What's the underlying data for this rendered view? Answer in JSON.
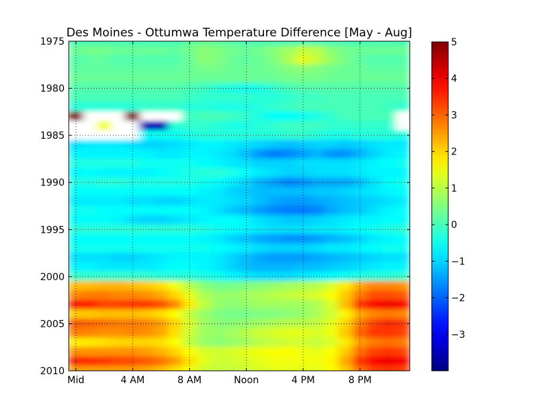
{
  "chart_data": {
    "type": "heatmap",
    "title": "Des Moines - Ottumwa Temperature Difference [May - Aug]",
    "x_tick_labels": [
      "Mid",
      "4 AM",
      "8 AM",
      "Noon",
      "4 PM",
      "8 PM"
    ],
    "x_tick_hours": [
      0,
      4,
      8,
      12,
      16,
      20
    ],
    "x_range_hours": [
      -0.5,
      23.5
    ],
    "y_tick_labels": [
      "1975",
      "1980",
      "1985",
      "1990",
      "1995",
      "2000",
      "2005",
      "2010"
    ],
    "y_range_years": [
      1975,
      2010
    ],
    "grid": true,
    "colorbar": {
      "min": -4,
      "max": 5,
      "tick_values": [
        5,
        4,
        3,
        2,
        1,
        0,
        -1,
        -2,
        -3
      ],
      "tick_labels": [
        "5",
        "4",
        "3",
        "2",
        "1",
        "0",
        "−1",
        "−2",
        "−3"
      ],
      "colormap": "jet"
    },
    "hours": [
      0,
      1,
      2,
      3,
      4,
      5,
      6,
      7,
      8,
      9,
      10,
      11,
      12,
      13,
      14,
      15,
      16,
      17,
      18,
      19,
      20,
      21,
      22,
      23
    ],
    "years": [
      1975,
      1976,
      1977,
      1978,
      1979,
      1980,
      1981,
      1982,
      1983,
      1984,
      1985,
      1986,
      1987,
      1988,
      1989,
      1990,
      1991,
      1992,
      1993,
      1994,
      1995,
      1996,
      1997,
      1998,
      1999,
      2000,
      2001,
      2002,
      2003,
      2004,
      2005,
      2006,
      2007,
      2008,
      2009,
      2010
    ],
    "values": [
      [
        0.0,
        0.0,
        0.0,
        0.0,
        0.0,
        0.0,
        0.0,
        0.0,
        0.2,
        0.3,
        0.2,
        0.1,
        0.0,
        0.0,
        0.0,
        0.0,
        0.0,
        0.0,
        0.0,
        0.0,
        0.0,
        0.0,
        0.0,
        0.0
      ],
      [
        0.3,
        0.4,
        0.4,
        0.3,
        0.3,
        0.3,
        0.3,
        0.2,
        0.4,
        0.6,
        0.5,
        0.4,
        0.3,
        0.4,
        0.6,
        0.8,
        1.1,
        1.0,
        0.6,
        0.4,
        0.3,
        0.3,
        0.3,
        0.3
      ],
      [
        0.1,
        0.2,
        0.2,
        0.1,
        0.1,
        0.1,
        0.1,
        0.1,
        0.3,
        0.6,
        0.5,
        0.3,
        0.2,
        0.3,
        0.5,
        0.9,
        1.4,
        1.1,
        0.7,
        0.4,
        0.2,
        0.1,
        0.1,
        0.1
      ],
      [
        0.2,
        0.2,
        0.2,
        0.2,
        0.2,
        0.2,
        0.2,
        0.2,
        0.3,
        0.4,
        0.4,
        0.3,
        0.3,
        0.3,
        0.4,
        0.5,
        0.6,
        0.5,
        0.4,
        0.3,
        0.3,
        0.2,
        0.2,
        0.2
      ],
      [
        0.3,
        0.3,
        0.3,
        0.3,
        0.3,
        0.3,
        0.3,
        0.3,
        0.3,
        0.3,
        0.3,
        0.3,
        0.3,
        0.3,
        0.3,
        0.4,
        0.4,
        0.4,
        0.3,
        0.3,
        0.3,
        0.3,
        0.3,
        0.3
      ],
      [
        0.1,
        0.1,
        0.1,
        0.1,
        0.1,
        0.1,
        0.1,
        0.1,
        0.0,
        -0.1,
        -0.3,
        -0.4,
        -0.5,
        -0.4,
        -0.2,
        0.0,
        0.1,
        0.1,
        0.1,
        0.1,
        0.1,
        0.1,
        0.1,
        0.1
      ],
      [
        0.0,
        0.0,
        0.0,
        0.0,
        0.0,
        0.0,
        0.0,
        0.0,
        -0.1,
        -0.2,
        -0.2,
        -0.2,
        -0.2,
        -0.3,
        -0.3,
        -0.2,
        -0.1,
        -0.1,
        0.0,
        0.0,
        0.0,
        0.0,
        0.0,
        0.0
      ],
      [
        -0.3,
        -0.3,
        -0.3,
        -0.3,
        -0.3,
        -0.2,
        -0.2,
        -0.2,
        -0.3,
        -0.3,
        -0.4,
        -0.4,
        -0.4,
        -0.3,
        -0.2,
        -0.1,
        0.0,
        0.0,
        0.0,
        0.0,
        0.0,
        0.0,
        -0.1,
        -0.2
      ],
      [
        5.0,
        null,
        null,
        null,
        5.0,
        null,
        null,
        null,
        -0.1,
        0.0,
        0.0,
        -0.1,
        -0.2,
        -0.4,
        -0.6,
        -0.6,
        -0.5,
        -0.4,
        -0.2,
        0.0,
        0.0,
        0.0,
        0.0,
        null
      ],
      [
        null,
        null,
        1.5,
        null,
        null,
        -3.5,
        -3.5,
        -0.3,
        -0.2,
        -0.2,
        -0.3,
        -0.4,
        -0.4,
        -0.3,
        -0.2,
        -0.1,
        -0.1,
        -0.1,
        -0.2,
        -0.2,
        -0.2,
        -0.2,
        -0.2,
        null
      ],
      [
        null,
        null,
        null,
        null,
        null,
        -0.6,
        -0.5,
        -0.5,
        -0.4,
        -0.3,
        -0.3,
        -0.3,
        -0.3,
        -0.3,
        -0.3,
        -0.2,
        -0.2,
        -0.3,
        -0.4,
        -0.4,
        -0.3,
        -0.3,
        -0.3,
        -0.4
      ],
      [
        -0.9,
        -0.8,
        -0.8,
        -0.8,
        -0.9,
        -1.0,
        -1.0,
        -0.9,
        -0.8,
        -0.7,
        -0.7,
        -0.8,
        -0.9,
        -1.0,
        -1.1,
        -1.2,
        -1.1,
        -1.0,
        -1.0,
        -1.1,
        -1.0,
        -0.9,
        -0.8,
        -0.8
      ],
      [
        -0.7,
        -0.7,
        -0.7,
        -0.7,
        -0.7,
        -0.7,
        -0.8,
        -0.8,
        -0.7,
        -0.7,
        -0.8,
        -0.9,
        -1.2,
        -1.6,
        -1.8,
        -1.7,
        -1.5,
        -1.3,
        -1.6,
        -1.6,
        -1.3,
        -1.0,
        -0.8,
        -0.7
      ],
      [
        -0.4,
        -0.4,
        -0.4,
        -0.4,
        -0.4,
        -0.5,
        -0.5,
        -0.5,
        -0.5,
        -0.6,
        -0.7,
        -0.8,
        -0.9,
        -1.0,
        -1.0,
        -1.0,
        -0.9,
        -0.9,
        -0.9,
        -0.9,
        -0.8,
        -0.7,
        -0.6,
        -0.5
      ],
      [
        -0.7,
        -0.6,
        -0.7,
        -0.7,
        -0.7,
        -0.7,
        -0.6,
        -0.5,
        -0.4,
        -0.3,
        -0.3,
        -0.4,
        -0.6,
        -0.8,
        -0.9,
        -1.0,
        -1.0,
        -0.9,
        -0.9,
        -0.9,
        -0.8,
        -0.7,
        -0.7,
        -0.7
      ],
      [
        -0.4,
        -0.4,
        -0.3,
        -0.3,
        -0.4,
        -0.4,
        -0.4,
        -0.4,
        -0.4,
        -0.5,
        -0.6,
        -0.8,
        -1.0,
        -1.3,
        -1.5,
        -1.7,
        -1.6,
        -1.4,
        -1.4,
        -1.4,
        -1.2,
        -0.9,
        -0.6,
        -0.5
      ],
      [
        -0.6,
        -0.6,
        -0.6,
        -0.6,
        -0.6,
        -0.6,
        -0.6,
        -0.6,
        -0.6,
        -0.7,
        -0.8,
        -1.0,
        -1.1,
        -1.2,
        -1.2,
        -1.2,
        -1.2,
        -1.1,
        -1.1,
        -1.0,
        -0.9,
        -0.8,
        -0.7,
        -0.6
      ],
      [
        -0.8,
        -0.8,
        -0.8,
        -0.8,
        -0.9,
        -0.9,
        -1.0,
        -1.0,
        -0.9,
        -0.8,
        -0.8,
        -0.9,
        -1.0,
        -1.2,
        -1.4,
        -1.5,
        -1.5,
        -1.4,
        -1.3,
        -1.2,
        -1.1,
        -1.0,
        -0.9,
        -0.8
      ],
      [
        -0.5,
        -0.5,
        -0.6,
        -0.6,
        -0.6,
        -0.6,
        -0.6,
        -0.6,
        -0.6,
        -0.7,
        -0.9,
        -1.1,
        -1.3,
        -1.5,
        -1.7,
        -1.8,
        -1.8,
        -1.7,
        -1.4,
        -1.2,
        -1.1,
        -0.9,
        -0.7,
        -0.6
      ],
      [
        -0.6,
        -0.6,
        -0.6,
        -0.7,
        -0.9,
        -1.0,
        -1.0,
        -0.9,
        -0.8,
        -0.7,
        -0.6,
        -0.6,
        -0.7,
        -0.9,
        -1.0,
        -1.1,
        -1.1,
        -1.0,
        -0.9,
        -0.8,
        -0.7,
        -0.7,
        -0.6,
        -0.6
      ],
      [
        -0.3,
        -0.3,
        -0.3,
        -0.3,
        -0.3,
        -0.3,
        -0.3,
        -0.3,
        -0.3,
        -0.4,
        -0.5,
        -0.6,
        -0.7,
        -0.8,
        -0.9,
        -0.9,
        -0.9,
        -0.8,
        -0.8,
        -0.7,
        -0.6,
        -0.5,
        -0.4,
        -0.3
      ],
      [
        -0.6,
        -0.6,
        -0.6,
        -0.6,
        -0.6,
        -0.6,
        -0.6,
        -0.6,
        -0.6,
        -0.7,
        -0.8,
        -1.0,
        -1.2,
        -1.4,
        -1.5,
        -1.6,
        -1.6,
        -1.5,
        -1.3,
        -1.2,
        -1.0,
        -0.8,
        -0.7,
        -0.6
      ],
      [
        -0.5,
        -0.5,
        -0.5,
        -0.5,
        -0.5,
        -0.5,
        -0.5,
        -0.5,
        -0.5,
        -0.5,
        -0.6,
        -0.7,
        -0.8,
        -0.9,
        -1.0,
        -1.0,
        -1.0,
        -0.9,
        -0.8,
        -0.8,
        -0.7,
        -0.6,
        -0.5,
        -0.5
      ],
      [
        -0.9,
        -0.9,
        -0.9,
        -1.0,
        -1.0,
        -0.9,
        -0.8,
        -0.7,
        -0.7,
        -0.7,
        -0.8,
        -1.0,
        -1.2,
        -1.4,
        -1.5,
        -1.5,
        -1.5,
        -1.4,
        -1.3,
        -1.2,
        -1.1,
        -1.0,
        -0.9,
        -0.9
      ],
      [
        -0.7,
        -0.7,
        -0.8,
        -0.8,
        -0.8,
        -0.8,
        -0.7,
        -0.6,
        -0.6,
        -0.7,
        -0.8,
        -1.0,
        -1.2,
        -1.3,
        -1.3,
        -1.3,
        -1.2,
        -1.2,
        -1.1,
        -1.0,
        -0.9,
        -0.8,
        -0.7,
        -0.7
      ],
      [
        -0.2,
        -0.2,
        -0.2,
        -0.2,
        -0.2,
        -0.2,
        -0.3,
        -0.3,
        -0.3,
        -0.4,
        -0.5,
        -0.7,
        -0.8,
        -0.9,
        -0.9,
        -0.9,
        -0.8,
        -0.7,
        -0.6,
        -0.5,
        -0.4,
        -0.3,
        -0.3,
        -0.2
      ],
      [
        2.2,
        2.2,
        2.3,
        2.3,
        2.2,
        2.1,
        1.9,
        1.5,
        1.0,
        0.6,
        0.4,
        0.4,
        0.5,
        0.6,
        0.7,
        0.8,
        0.9,
        1.0,
        1.3,
        1.8,
        2.4,
        2.7,
        2.7,
        2.6
      ],
      [
        2.7,
        2.8,
        2.8,
        2.7,
        2.7,
        2.6,
        2.4,
        2.0,
        1.4,
        0.9,
        0.7,
        0.7,
        0.8,
        0.9,
        1.0,
        1.1,
        1.2,
        1.3,
        1.6,
        2.1,
        2.8,
        3.2,
        3.2,
        3.1
      ],
      [
        3.8,
        3.6,
        3.3,
        3.3,
        3.4,
        3.4,
        3.2,
        2.7,
        1.8,
        1.1,
        0.7,
        0.6,
        0.7,
        0.8,
        0.8,
        0.8,
        0.8,
        0.9,
        1.3,
        2.2,
        3.4,
        3.9,
        4.0,
        3.9
      ],
      [
        2.1,
        2.1,
        2.2,
        2.2,
        2.2,
        2.1,
        1.9,
        1.6,
        1.1,
        0.7,
        0.5,
        0.4,
        0.4,
        0.5,
        0.5,
        0.6,
        0.7,
        0.9,
        1.2,
        1.7,
        2.4,
        2.7,
        2.8,
        2.7
      ],
      [
        3.1,
        3.0,
        2.9,
        2.8,
        2.8,
        2.7,
        2.5,
        2.0,
        1.3,
        0.8,
        0.6,
        0.6,
        0.7,
        0.8,
        0.9,
        1.0,
        1.0,
        1.1,
        1.4,
        2.0,
        2.8,
        3.3,
        3.5,
        3.4
      ],
      [
        2.8,
        2.7,
        2.6,
        2.6,
        2.7,
        2.6,
        2.4,
        1.9,
        1.2,
        0.8,
        0.7,
        0.8,
        1.0,
        1.2,
        1.3,
        1.4,
        1.4,
        1.3,
        1.5,
        2.1,
        3.0,
        3.4,
        3.4,
        3.3
      ],
      [
        1.8,
        1.8,
        1.9,
        2.0,
        2.0,
        2.0,
        1.9,
        1.6,
        1.1,
        0.7,
        0.6,
        0.7,
        0.8,
        1.0,
        1.1,
        1.2,
        1.2,
        1.1,
        1.3,
        1.8,
        2.5,
        2.8,
        2.9,
        2.8
      ],
      [
        2.6,
        2.6,
        2.6,
        2.6,
        2.6,
        2.5,
        2.3,
        2.0,
        1.6,
        1.3,
        1.2,
        1.3,
        1.4,
        1.5,
        1.6,
        1.6,
        1.5,
        1.4,
        1.6,
        2.1,
        2.9,
        3.3,
        3.4,
        3.3
      ],
      [
        3.6,
        3.5,
        3.4,
        3.3,
        3.2,
        3.1,
        2.9,
        2.5,
        1.9,
        1.4,
        1.2,
        1.2,
        1.3,
        1.4,
        1.5,
        1.5,
        1.5,
        1.5,
        1.7,
        2.4,
        3.4,
        3.9,
        4.0,
        3.9
      ],
      [
        2.5,
        2.5,
        2.5,
        2.5,
        2.5,
        2.4,
        2.2,
        1.9,
        1.5,
        1.2,
        1.1,
        1.1,
        1.2,
        1.3,
        1.4,
        1.4,
        1.4,
        1.4,
        1.6,
        2.1,
        2.9,
        3.3,
        3.4,
        3.3
      ]
    ]
  }
}
